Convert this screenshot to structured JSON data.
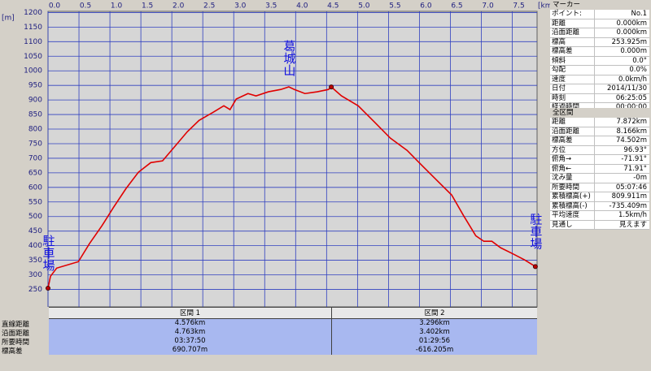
{
  "chart_data": {
    "type": "line",
    "xlabel": "[km]",
    "ylabel": "[m]",
    "x": [
      0,
      0.04,
      0.14,
      0.49,
      0.67,
      0.87,
      1.06,
      1.26,
      1.46,
      1.66,
      1.85,
      2.05,
      2.25,
      2.44,
      2.67,
      2.84,
      2.94,
      3.04,
      3.23,
      3.36,
      3.56,
      3.76,
      3.89,
      3.98,
      4.15,
      4.35,
      4.53,
      4.576,
      4.74,
      5.01,
      5.27,
      5.53,
      5.8,
      6.06,
      6.32,
      6.52,
      6.71,
      6.91,
      7.04,
      7.17,
      7.31,
      7.5,
      7.7,
      7.872
    ],
    "series": [
      {
        "color": "#e00000",
        "values": [
          253.9,
          295,
          323,
          345,
          407,
          468,
          532,
          596,
          652,
          685,
          691,
          741,
          791,
          830,
          858,
          880,
          867,
          903,
          922,
          914,
          928,
          936,
          945,
          936,
          922,
          928,
          936,
          944.6,
          914,
          880,
          825,
          769,
          727,
          671,
          616,
          574,
          504,
          434,
          415,
          415,
          393,
          373,
          351,
          328.4
        ]
      }
    ],
    "points": [
      {
        "x": 0,
        "y": 253.9
      },
      {
        "x": 4.576,
        "y": 944.6
      },
      {
        "x": 7.872,
        "y": 328.4
      }
    ],
    "annotations": [
      {
        "text": "駐車場",
        "x": 0,
        "y": 253.9
      },
      {
        "text": "葛城山",
        "x": 3.89,
        "y": 945
      },
      {
        "text": "駐車場",
        "x": 7.872,
        "y": 328.4
      }
    ],
    "xlim": [
      0,
      7.9
    ],
    "ylim": [
      190,
      1204
    ],
    "xticks": [
      {
        "value": 0,
        "label": "0.0"
      },
      0.5,
      {
        "value": 1,
        "label": "1.0"
      },
      1.5,
      {
        "value": 2,
        "label": "2.0"
      },
      2.5,
      {
        "value": 3,
        "label": "3.0"
      },
      3.5,
      {
        "value": 4,
        "label": "4.0"
      },
      4.5,
      {
        "value": 5,
        "label": "5.0"
      },
      5.5,
      {
        "value": 6,
        "label": "6.0"
      },
      6.5,
      {
        "value": 7,
        "label": "7.0"
      },
      7.5
    ],
    "yticks": [
      250,
      300,
      350,
      400,
      450,
      500,
      550,
      600,
      650,
      700,
      750,
      800,
      850,
      900,
      950,
      1000,
      1050,
      1100,
      1150,
      1200
    ],
    "grid": true,
    "grid_color": "#3040c0"
  },
  "sections": {
    "header": [
      "区間 1",
      "区間 2"
    ],
    "rows": [
      [
        "直線距離",
        "4.576km",
        "3.296km"
      ],
      [
        "沿面距離",
        "4.763km",
        "3.402km"
      ],
      [
        "所要時間",
        "03:37:50",
        "01:29:56"
      ],
      [
        "標高差",
        "690.707m",
        "-616.205m"
      ]
    ]
  },
  "marker_panel": {
    "title": "マーカー",
    "rows": [
      [
        "ポイント:",
        "No.1"
      ],
      [
        "距離",
        "0.000km"
      ],
      [
        "沿面距離",
        "0.000km"
      ],
      [
        "標高",
        "253.925m"
      ],
      [
        "標高差",
        "0.000m"
      ],
      [
        "傾斜",
        "0.0°"
      ],
      [
        "勾配",
        "0.0%"
      ],
      [
        "速度",
        "0.0km/h"
      ],
      [
        "日付",
        "2014/11/30"
      ],
      [
        "時刻",
        "06:25:05"
      ],
      [
        "経過時間",
        "00:00:00"
      ]
    ]
  },
  "total_panel": {
    "title": "全区間",
    "rows": [
      [
        "距離",
        "7.872km"
      ],
      [
        "沿面距離",
        "8.166km"
      ],
      [
        "標高差",
        "74.502m"
      ],
      [
        "方位",
        "96.93°"
      ],
      [
        "俯角→",
        "-71.91°"
      ],
      [
        "俯角←",
        "71.91°"
      ],
      [
        "沈み量",
        "-0m"
      ],
      [
        "所要時間",
        "05:07:46"
      ],
      [
        "累積標高(+)",
        "809.911m"
      ],
      [
        "累積標高(-)",
        "-735.409m"
      ],
      [
        "平均速度",
        "1.5km/h"
      ],
      [
        "見通し",
        "見えます"
      ]
    ]
  }
}
